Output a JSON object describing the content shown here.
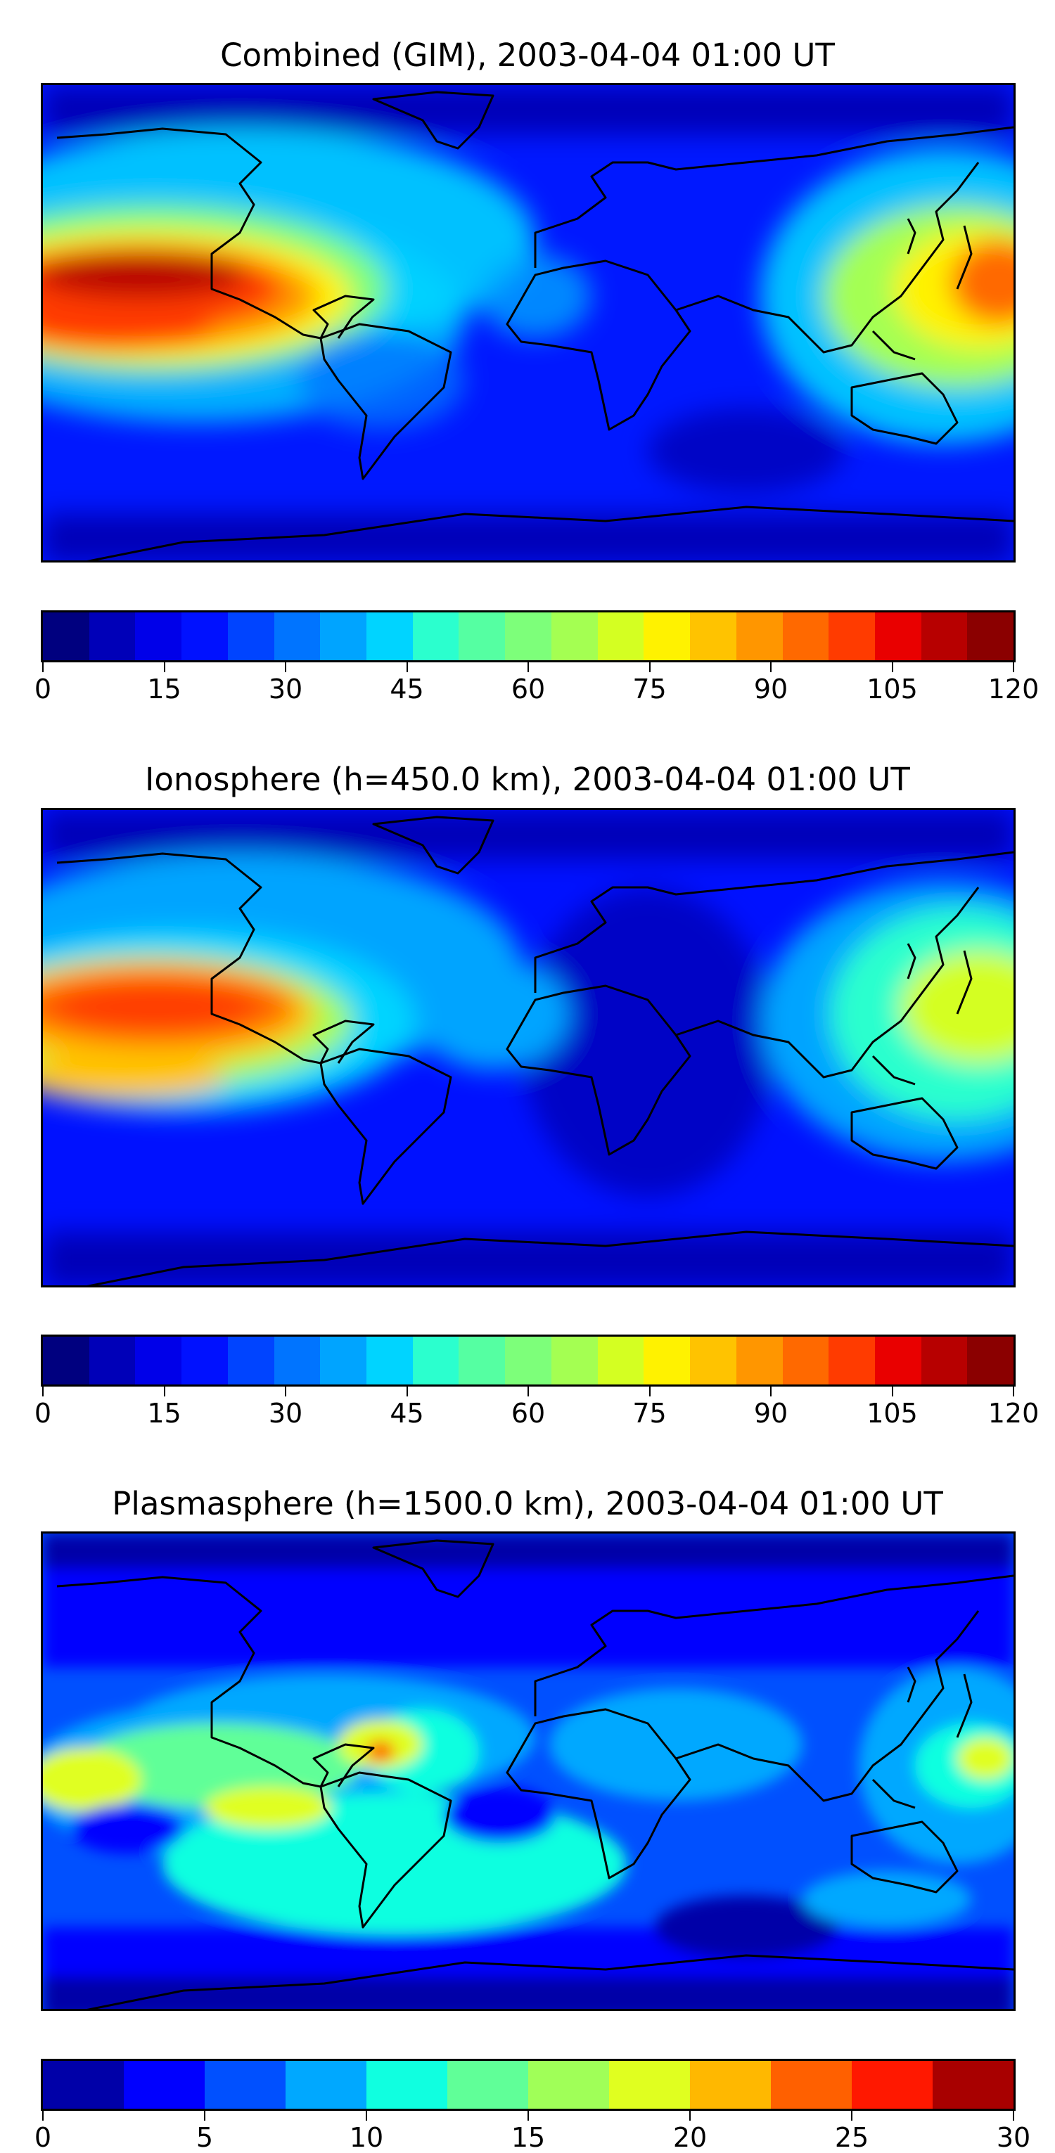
{
  "panels": [
    {
      "title": "Combined (GIM), 2003-04-04 01:00 UT",
      "colorbar": {
        "colors": [
          "#00007f",
          "#0000b8",
          "#0000e9",
          "#0011ff",
          "#0044ff",
          "#0074ff",
          "#00a4ff",
          "#00d4ff",
          "#2bffce",
          "#55ffa2",
          "#7dff7a",
          "#a4ff52",
          "#d4ff22",
          "#fff200",
          "#ffc300",
          "#ff9600",
          "#ff6900",
          "#ff3b00",
          "#e90000",
          "#b70000",
          "#8b0000"
        ],
        "ticks": [
          "0",
          "15",
          "30",
          "45",
          "60",
          "75",
          "90",
          "105",
          "120"
        ],
        "min": 0,
        "max": 120
      }
    },
    {
      "title": "Ionosphere  (h=450.0 km), 2003-04-04 01:00 UT",
      "colorbar": {
        "colors": [
          "#00007f",
          "#0000b8",
          "#0000e9",
          "#0011ff",
          "#0044ff",
          "#0074ff",
          "#00a4ff",
          "#00d4ff",
          "#2bffce",
          "#55ffa2",
          "#7dff7a",
          "#a4ff52",
          "#d4ff22",
          "#fff200",
          "#ffc300",
          "#ff9600",
          "#ff6900",
          "#ff3b00",
          "#e90000",
          "#b70000",
          "#8b0000"
        ],
        "ticks": [
          "0",
          "15",
          "30",
          "45",
          "60",
          "75",
          "90",
          "105",
          "120"
        ],
        "min": 0,
        "max": 120
      }
    },
    {
      "title": "Plasmasphere (h=1500.0 km), 2003-04-04 01:00 UT",
      "colorbar": {
        "colors": [
          "#0000a8",
          "#0000ff",
          "#0050ff",
          "#00a8ff",
          "#10ffe0",
          "#60ff98",
          "#a0ff58",
          "#e0ff20",
          "#ffb800",
          "#ff6000",
          "#ff1800",
          "#a80000"
        ],
        "ticks": [
          "0",
          "5",
          "10",
          "15",
          "20",
          "25",
          "30"
        ],
        "min": 0,
        "max": 30
      }
    }
  ]
}
